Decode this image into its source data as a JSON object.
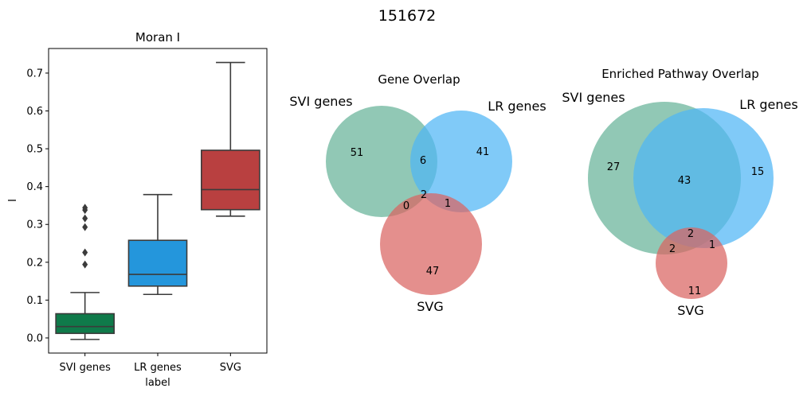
{
  "figure_title": "151672",
  "chart_data": [
    {
      "type": "box",
      "title": "Moran I",
      "xlabel": "label",
      "ylabel": "I",
      "ylim": [
        -0.04,
        0.765
      ],
      "yticks": [
        "0.0",
        "0.1",
        "0.2",
        "0.3",
        "0.4",
        "0.5",
        "0.6",
        "0.7"
      ],
      "categories": [
        "SVI genes",
        "LR genes",
        "SVG"
      ],
      "colors": [
        "#0f7a4a",
        "#2496dc",
        "#b94040"
      ],
      "boxes": [
        {
          "q1": 0.012,
          "median": 0.03,
          "q3": 0.064,
          "whisker_low": -0.004,
          "whisker_high": 0.12,
          "outliers": [
            0.194,
            0.226,
            0.293,
            0.316,
            0.338,
            0.344
          ]
        },
        {
          "q1": 0.137,
          "median": 0.168,
          "q3": 0.258,
          "whisker_low": 0.115,
          "whisker_high": 0.379,
          "outliers": []
        },
        {
          "q1": 0.339,
          "median": 0.392,
          "q3": 0.496,
          "whisker_low": 0.322,
          "whisker_high": 0.728,
          "outliers": []
        }
      ]
    },
    {
      "type": "venn3",
      "title": "Gene Overlap",
      "set_labels": [
        "SVI genes",
        "LR genes",
        "SVG"
      ],
      "set_colors": [
        "#66b398",
        "#67bef6",
        "#dd7e7c"
      ],
      "regions": {
        "A_only": "51",
        "B_only": "41",
        "C_only": "47",
        "AB": "6",
        "AC": "0",
        "BC": "1",
        "ABC": "2"
      }
    },
    {
      "type": "venn3",
      "title": "Enriched Pathway Overlap",
      "set_labels": [
        "SVI genes",
        "LR genes",
        "SVG"
      ],
      "set_colors": [
        "#66b398",
        "#67bef6",
        "#dd7e7c"
      ],
      "regions": {
        "A_only": "27",
        "B_only": "15",
        "C_only": "11",
        "AB": "43",
        "AC": "2",
        "BC": "1",
        "ABC": "2"
      }
    }
  ]
}
